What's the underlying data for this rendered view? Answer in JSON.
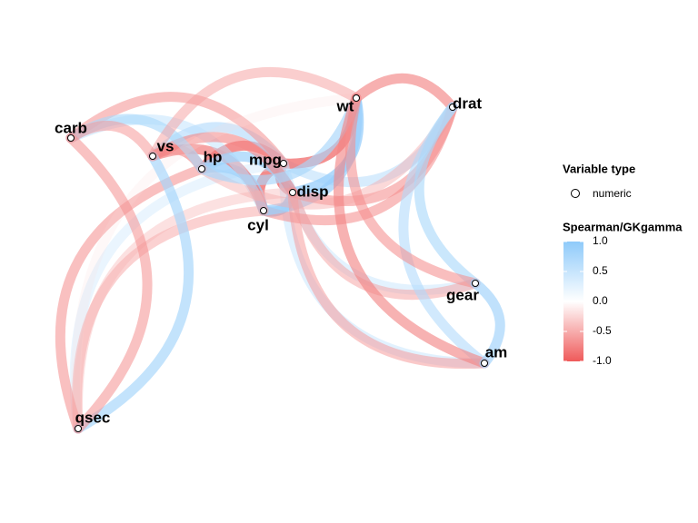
{
  "nodes": [
    {
      "label": "carb"
    },
    {
      "label": "vs"
    },
    {
      "label": "hp"
    },
    {
      "label": "mpg"
    },
    {
      "label": "disp"
    },
    {
      "label": "cyl"
    },
    {
      "label": "wt"
    },
    {
      "label": "drat"
    },
    {
      "label": "gear"
    },
    {
      "label": "am"
    },
    {
      "label": "qsec"
    }
  ],
  "edges": [
    {
      "from": "mpg",
      "to": "cyl",
      "r": -0.91
    },
    {
      "from": "mpg",
      "to": "disp",
      "r": -0.91
    },
    {
      "from": "mpg",
      "to": "hp",
      "r": -0.89
    },
    {
      "from": "mpg",
      "to": "drat",
      "r": 0.65
    },
    {
      "from": "mpg",
      "to": "wt",
      "r": -0.89
    },
    {
      "from": "mpg",
      "to": "qsec",
      "r": 0.47
    },
    {
      "from": "mpg",
      "to": "vs",
      "r": 0.71
    },
    {
      "from": "mpg",
      "to": "am",
      "r": 0.56
    },
    {
      "from": "mpg",
      "to": "gear",
      "r": 0.54
    },
    {
      "from": "mpg",
      "to": "carb",
      "r": -0.66
    },
    {
      "from": "cyl",
      "to": "disp",
      "r": 0.93
    },
    {
      "from": "cyl",
      "to": "hp",
      "r": 0.9
    },
    {
      "from": "cyl",
      "to": "drat",
      "r": -0.68
    },
    {
      "from": "cyl",
      "to": "wt",
      "r": 0.86
    },
    {
      "from": "cyl",
      "to": "qsec",
      "r": -0.57
    },
    {
      "from": "cyl",
      "to": "vs",
      "r": -0.81
    },
    {
      "from": "cyl",
      "to": "carb",
      "r": 0.58
    },
    {
      "from": "disp",
      "to": "hp",
      "r": 0.85
    },
    {
      "from": "disp",
      "to": "drat",
      "r": -0.68
    },
    {
      "from": "disp",
      "to": "wt",
      "r": 0.9
    },
    {
      "from": "disp",
      "to": "qsec",
      "r": -0.46
    },
    {
      "from": "disp",
      "to": "vs",
      "r": -0.72
    },
    {
      "from": "disp",
      "to": "am",
      "r": -0.62
    },
    {
      "from": "disp",
      "to": "gear",
      "r": -0.59
    },
    {
      "from": "hp",
      "to": "drat",
      "r": -0.52
    },
    {
      "from": "hp",
      "to": "wt",
      "r": 0.77
    },
    {
      "from": "hp",
      "to": "qsec",
      "r": -0.67
    },
    {
      "from": "hp",
      "to": "vs",
      "r": -0.75
    },
    {
      "from": "hp",
      "to": "carb",
      "r": 0.74
    },
    {
      "from": "drat",
      "to": "wt",
      "r": -0.75
    },
    {
      "from": "drat",
      "to": "am",
      "r": 0.69
    },
    {
      "from": "drat",
      "to": "gear",
      "r": 0.74
    },
    {
      "from": "wt",
      "to": "qsec",
      "r": -0.23
    },
    {
      "from": "wt",
      "to": "vs",
      "r": -0.59
    },
    {
      "from": "wt",
      "to": "am",
      "r": -0.74
    },
    {
      "from": "wt",
      "to": "gear",
      "r": -0.68
    },
    {
      "from": "qsec",
      "to": "vs",
      "r": 0.79
    },
    {
      "from": "qsec",
      "to": "carb",
      "r": -0.66
    },
    {
      "from": "vs",
      "to": "carb",
      "r": -0.63
    },
    {
      "from": "am",
      "to": "gear",
      "r": 0.81
    }
  ],
  "legend": {
    "shape_title": "Variable type",
    "shape_label": "numeric",
    "color_title": "Spearman/GKgamma",
    "colors": {
      "low": "#ef5a5a",
      "mid": "#ffffff",
      "high": "#8ecafa"
    },
    "limits": [
      -1,
      1
    ],
    "ticks": [
      {
        "value": 1,
        "label": "1.0"
      },
      {
        "value": 0.5,
        "label": "0.5"
      },
      {
        "value": 0,
        "label": "0.0"
      },
      {
        "value": -0.5,
        "label": "-0.5"
      },
      {
        "value": -1,
        "label": "-1.0"
      }
    ]
  }
}
